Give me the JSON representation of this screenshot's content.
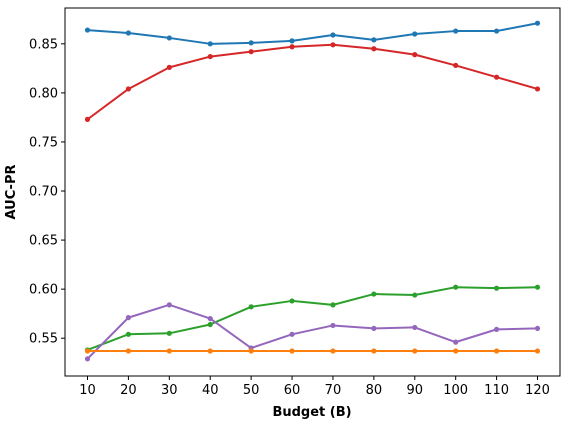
{
  "chart_data": {
    "type": "line",
    "title": "",
    "xlabel": "Budget (B)",
    "ylabel": "AUC-PR",
    "x": [
      10,
      20,
      30,
      40,
      50,
      60,
      70,
      80,
      90,
      100,
      110,
      120
    ],
    "xlim": [
      4.5,
      125.5
    ],
    "ylim": [
      0.5115,
      0.8865
    ],
    "yticks": [
      0.55,
      0.6,
      0.65,
      0.7,
      0.75,
      0.8,
      0.85
    ],
    "ytick_labels": [
      "0.55",
      "0.60",
      "0.65",
      "0.70",
      "0.75",
      "0.80",
      "0.85"
    ],
    "grid": false,
    "legend": "none",
    "series": [
      {
        "color": "#1f77b4",
        "values": [
          0.864,
          0.861,
          0.856,
          0.85,
          0.851,
          0.853,
          0.859,
          0.854,
          0.86,
          0.863,
          0.863,
          0.871
        ]
      },
      {
        "color": "#d62728",
        "values": [
          0.773,
          0.804,
          0.826,
          0.837,
          0.842,
          0.847,
          0.849,
          0.845,
          0.839,
          0.828,
          0.816,
          0.804
        ]
      },
      {
        "color": "#2ca02c",
        "values": [
          0.538,
          0.554,
          0.555,
          0.564,
          0.582,
          0.588,
          0.584,
          0.595,
          0.594,
          0.602,
          0.601,
          0.602
        ]
      },
      {
        "color": "#9467bd",
        "values": [
          0.529,
          0.571,
          0.584,
          0.57,
          0.54,
          0.554,
          0.563,
          0.56,
          0.561,
          0.546,
          0.559,
          0.56
        ]
      },
      {
        "color": "#ff7f0e",
        "values": [
          0.537,
          0.537,
          0.537,
          0.537,
          0.537,
          0.537,
          0.537,
          0.537,
          0.537,
          0.537,
          0.537,
          0.537
        ]
      }
    ]
  }
}
